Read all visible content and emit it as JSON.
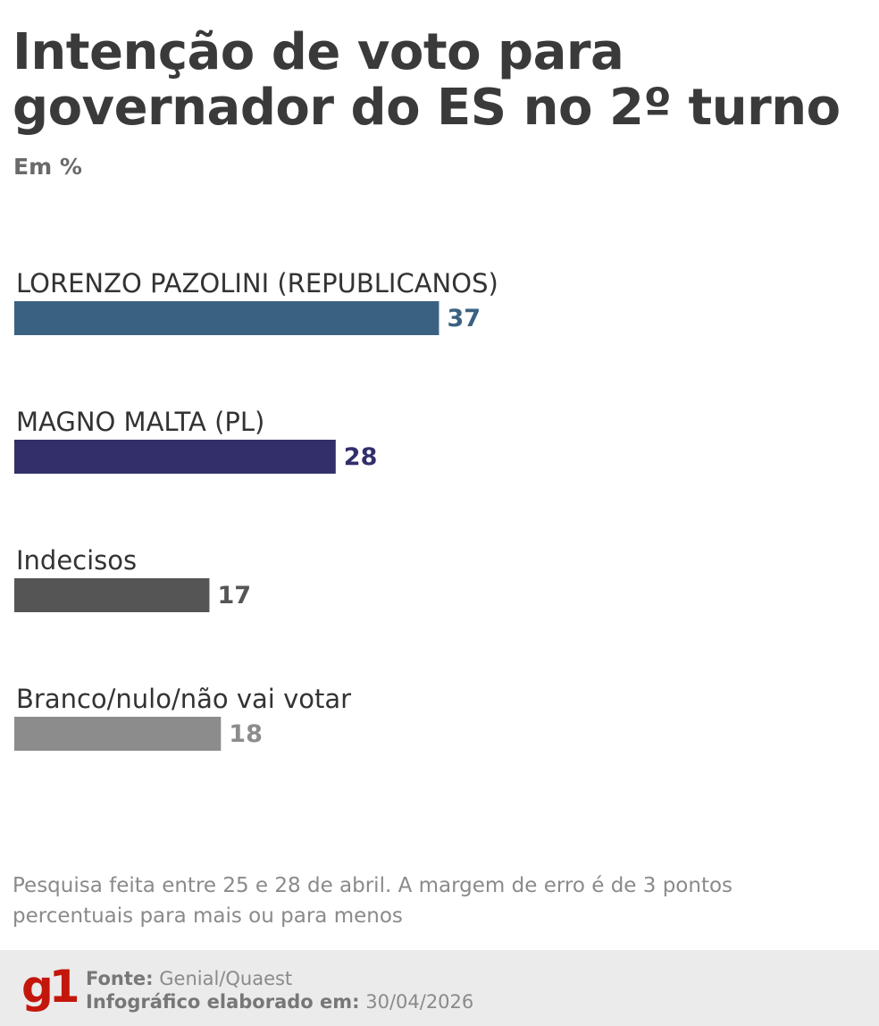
{
  "title": "Intenção de voto para governador do ES no 2º turno",
  "subtitle": "Em %",
  "chart_data": {
    "type": "bar",
    "orientation": "horizontal",
    "categories": [
      "LORENZO PAZOLINI (REPUBLICANOS)",
      "MAGNO MALTA (PL)",
      "Indecisos",
      "Branco/nulo/não vai votar"
    ],
    "values": [
      37,
      28,
      17,
      18
    ],
    "colors": [
      "#3b6182",
      "#322f6b",
      "#555555",
      "#8c8c8c"
    ],
    "xlim": [
      0,
      100
    ],
    "grid": false,
    "legend": false,
    "data_labels": true
  },
  "note": "Pesquisa feita entre 25 e 28 de abril. A margem de erro é de 3 pontos percentuais para mais ou para menos",
  "footer": {
    "logo": "g1",
    "source_label": "Fonte:",
    "source_value": "Genial/Quaest",
    "date_label": "Infográfico elaborado em:",
    "date_value": "30/04/2026"
  }
}
